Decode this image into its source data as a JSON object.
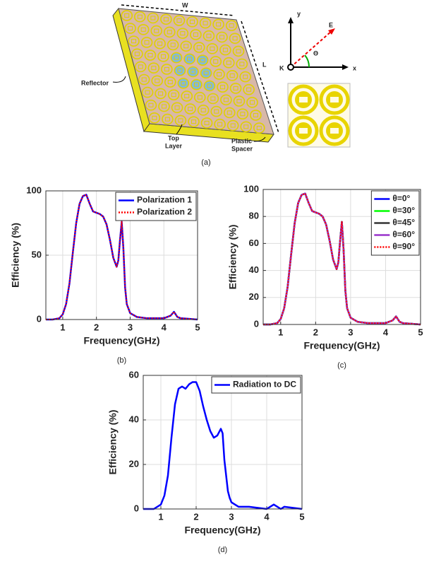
{
  "figure_a": {
    "width_label": "W",
    "length_label": "L",
    "reflector_label": "Reflector",
    "top_layer_label": [
      "Top",
      "Layer"
    ],
    "spacer_label": [
      "Plastic",
      "Spacer"
    ],
    "axis_y": "y",
    "axis_x": "x",
    "field_e": "E",
    "wave_k": "K",
    "angle": "Θ",
    "caption": "(a)"
  },
  "chart_data": [
    {
      "type": "line",
      "caption": "(b)",
      "x_label": "Frequency(GHz)",
      "y_label": "Efficiency (%)",
      "x": [
        0.5,
        0.7,
        0.9,
        1.0,
        1.1,
        1.2,
        1.3,
        1.4,
        1.5,
        1.6,
        1.7,
        1.8,
        1.9,
        2.0,
        2.1,
        2.2,
        2.3,
        2.4,
        2.5,
        2.6,
        2.65,
        2.7,
        2.75,
        2.8,
        2.85,
        2.9,
        3.0,
        3.2,
        3.5,
        4.0,
        4.2,
        4.3,
        4.4,
        4.5,
        5.0
      ],
      "series": [
        {
          "name": "Polarization 1",
          "color": "#0000ff",
          "linestyle": "solid",
          "values": [
            0,
            0,
            1,
            4,
            12,
            28,
            52,
            75,
            90,
            96,
            97,
            90,
            84,
            83,
            82,
            80,
            74,
            62,
            48,
            41,
            46,
            62,
            76,
            55,
            25,
            12,
            5,
            2,
            1,
            1,
            3,
            6,
            2,
            1,
            0
          ]
        },
        {
          "name": "Polarization 2",
          "color": "#ff0000",
          "linestyle": "dotted",
          "values": [
            0,
            0,
            1,
            4,
            12,
            28,
            52,
            75,
            90,
            96,
            97,
            90,
            84,
            83,
            82,
            80,
            74,
            62,
            48,
            41,
            46,
            62,
            76,
            55,
            25,
            12,
            5,
            2,
            1,
            1,
            3,
            6,
            2,
            1,
            0
          ]
        }
      ],
      "xlim": [
        0.5,
        5
      ],
      "xticks": [
        1,
        2,
        3,
        4,
        5
      ],
      "ylim": [
        0,
        100
      ],
      "yticks": [
        0,
        50,
        100
      ],
      "grid": true,
      "legend": "upper right"
    },
    {
      "type": "line",
      "caption": "(c)",
      "x_label": "Frequency(GHz)",
      "y_label": "Efficiency (%)",
      "x": [
        0.5,
        0.7,
        0.9,
        1.0,
        1.1,
        1.2,
        1.3,
        1.4,
        1.5,
        1.6,
        1.7,
        1.8,
        1.9,
        2.0,
        2.1,
        2.2,
        2.3,
        2.4,
        2.5,
        2.6,
        2.65,
        2.7,
        2.75,
        2.8,
        2.85,
        2.9,
        3.0,
        3.2,
        3.5,
        4.0,
        4.2,
        4.3,
        4.4,
        4.5,
        5.0
      ],
      "series": [
        {
          "name": "θ=0°",
          "color": "#0000ff",
          "linestyle": "solid",
          "values": [
            0,
            0,
            1,
            4,
            12,
            28,
            52,
            75,
            90,
            96,
            97,
            90,
            84,
            83,
            82,
            80,
            74,
            62,
            48,
            41,
            46,
            62,
            76,
            55,
            25,
            12,
            5,
            2,
            1,
            1,
            3,
            6,
            2,
            1,
            0
          ]
        },
        {
          "name": "θ=30°",
          "color": "#00ff00",
          "linestyle": "solid",
          "values": [
            0,
            0,
            1,
            4,
            12,
            28,
            52,
            75,
            90,
            96,
            97,
            90,
            84,
            83,
            82,
            80,
            74,
            62,
            48,
            41,
            46,
            62,
            76,
            55,
            25,
            12,
            5,
            2,
            1,
            1,
            3,
            6,
            2,
            1,
            0
          ]
        },
        {
          "name": "θ=45°",
          "color": "#333333",
          "linestyle": "solid",
          "values": [
            0,
            0,
            1,
            4,
            12,
            28,
            52,
            75,
            90,
            96,
            97,
            90,
            84,
            83,
            82,
            80,
            74,
            62,
            48,
            41,
            46,
            62,
            76,
            55,
            25,
            12,
            5,
            2,
            1,
            1,
            3,
            6,
            2,
            1,
            0
          ]
        },
        {
          "name": "θ=60°",
          "color": "#9933cc",
          "linestyle": "solid",
          "values": [
            0,
            0,
            1,
            4,
            12,
            28,
            52,
            75,
            90,
            96,
            97,
            90,
            84,
            83,
            82,
            80,
            74,
            62,
            48,
            41,
            46,
            62,
            76,
            55,
            25,
            12,
            5,
            2,
            1,
            1,
            3,
            6,
            2,
            1,
            0
          ]
        },
        {
          "name": "θ=90°",
          "color": "#ff0000",
          "linestyle": "dotted",
          "values": [
            0,
            0,
            1,
            4,
            12,
            28,
            52,
            75,
            90,
            96,
            97,
            90,
            84,
            83,
            82,
            80,
            74,
            62,
            48,
            41,
            46,
            62,
            76,
            55,
            25,
            12,
            5,
            2,
            1,
            1,
            3,
            6,
            2,
            1,
            0
          ]
        }
      ],
      "xlim": [
        0.5,
        5
      ],
      "xticks": [
        1,
        2,
        3,
        4,
        5
      ],
      "ylim": [
        0,
        100
      ],
      "yticks": [
        0,
        20,
        40,
        60,
        80,
        100
      ],
      "grid": true,
      "legend": "upper right"
    },
    {
      "type": "line",
      "caption": "(d)",
      "x_label": "Frequency(GHz)",
      "y_label": "Efficiency (%)",
      "x": [
        0.5,
        0.8,
        1.0,
        1.1,
        1.2,
        1.3,
        1.4,
        1.5,
        1.6,
        1.7,
        1.8,
        1.9,
        2.0,
        2.1,
        2.2,
        2.3,
        2.4,
        2.5,
        2.6,
        2.7,
        2.75,
        2.8,
        2.9,
        2.95,
        3.0,
        3.2,
        3.5,
        4.0,
        4.2,
        4.3,
        4.4,
        4.5,
        5.0
      ],
      "series": [
        {
          "name": "Radiation to DC",
          "color": "#0000ff",
          "linestyle": "solid",
          "values": [
            0,
            0,
            2,
            6,
            15,
            32,
            47,
            54,
            55,
            54,
            56,
            57,
            57,
            53,
            46,
            40,
            35,
            32,
            33,
            36,
            34,
            22,
            8,
            5,
            3,
            1,
            1,
            0,
            2,
            1,
            0,
            1,
            0
          ]
        }
      ],
      "xlim": [
        0.5,
        5
      ],
      "xticks": [
        1,
        2,
        3,
        4,
        5
      ],
      "ylim": [
        0,
        60
      ],
      "yticks": [
        0,
        20,
        40,
        60
      ],
      "grid": true,
      "legend": "upper right"
    }
  ]
}
